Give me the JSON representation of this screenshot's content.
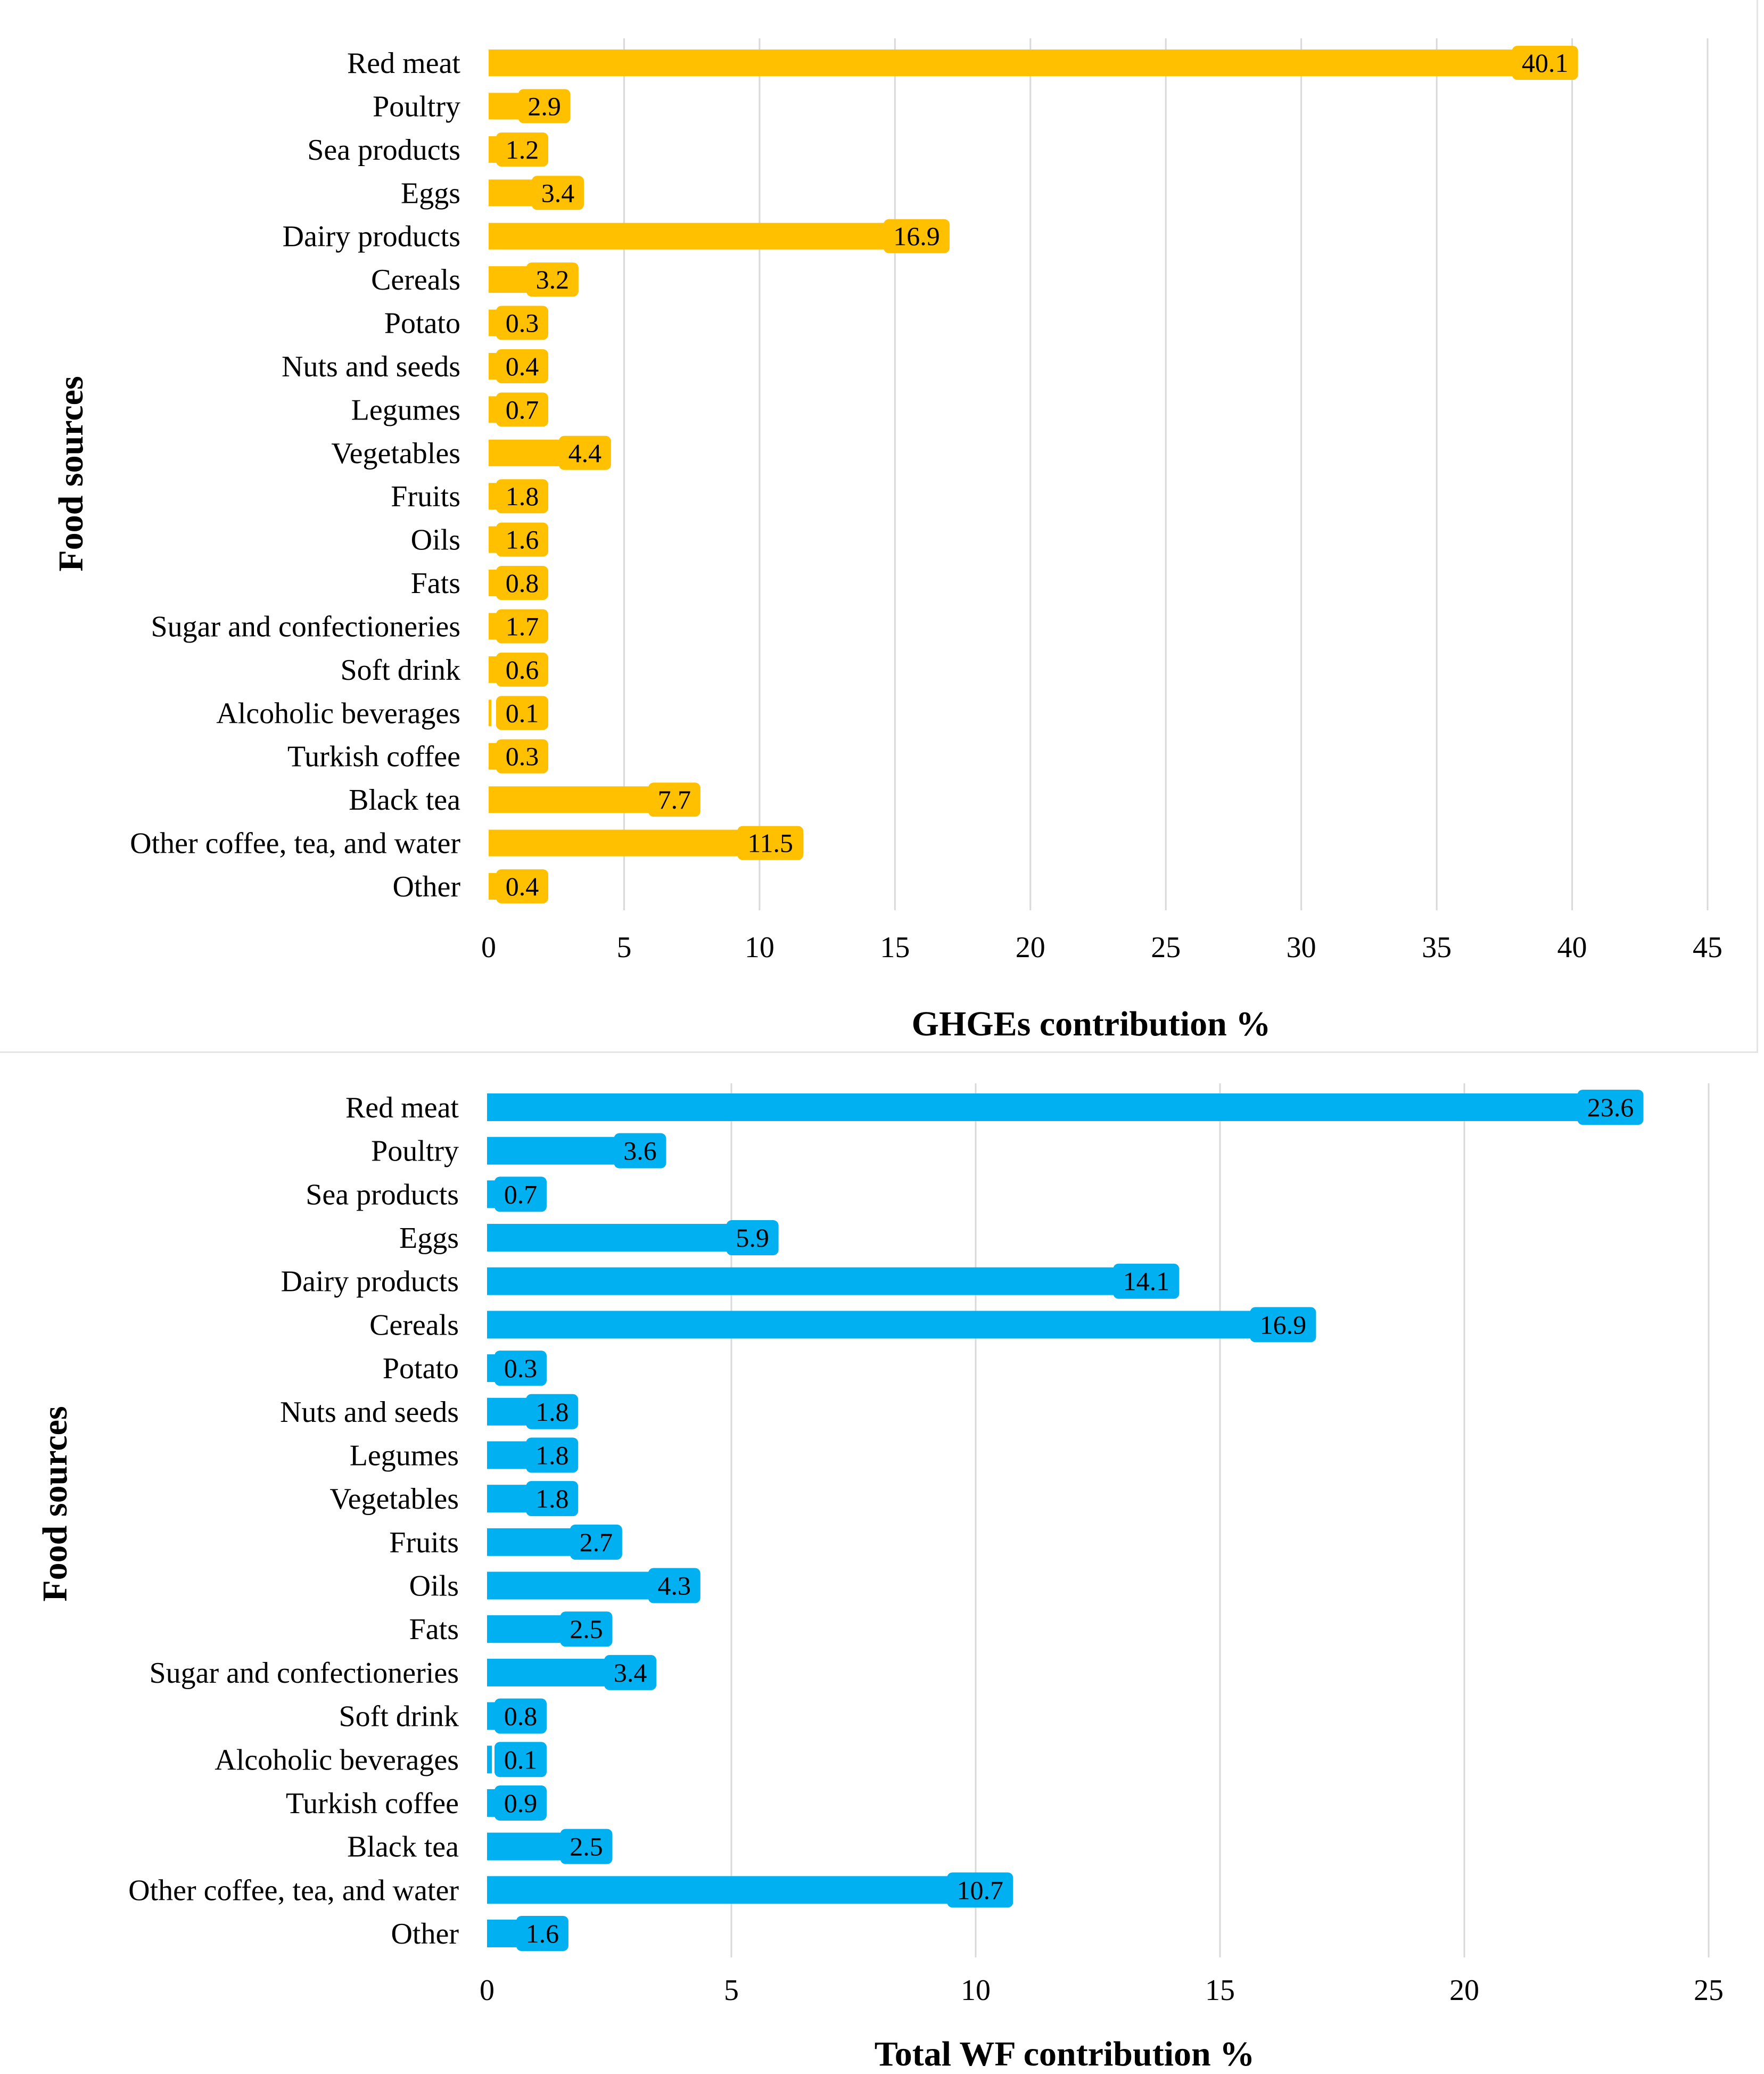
{
  "chart_data": [
    {
      "type": "bar",
      "orientation": "horizontal",
      "title": "",
      "xlabel": "GHGEs contribution %",
      "ylabel": "Food sources",
      "xlim": [
        0,
        45
      ],
      "xticks": [
        0,
        5,
        10,
        15,
        20,
        25,
        30,
        35,
        40,
        45
      ],
      "grid": true,
      "color": "#ffc000",
      "categories": [
        "Red meat",
        "Poultry",
        "Sea products",
        "Eggs",
        "Dairy products",
        "Cereals",
        "Potato",
        "Nuts and seeds",
        "Legumes",
        "Vegetables",
        "Fruits",
        "Oils",
        "Fats",
        "Sugar and confectioneries",
        "Soft drink",
        "Alcoholic beverages",
        "Turkish coffee",
        "Black tea",
        "Other coffee, tea, and water",
        "Other"
      ],
      "values": [
        40.1,
        2.9,
        1.2,
        3.4,
        16.9,
        3.2,
        0.3,
        0.4,
        0.7,
        4.4,
        1.8,
        1.6,
        0.8,
        1.7,
        0.6,
        0.1,
        0.3,
        7.7,
        11.5,
        0.4
      ],
      "value_labels": [
        "40.1",
        "2.9",
        "1.2",
        "3.4",
        "16.9",
        "3.2",
        "0.3",
        "0.4",
        "0.7",
        "4.4",
        "1.8",
        "1.6",
        "0.8",
        "1.7",
        "0.6",
        "0.1",
        "0.3",
        "7.7",
        "11.5",
        "0.4"
      ]
    },
    {
      "type": "bar",
      "orientation": "horizontal",
      "title": "",
      "xlabel": "Total WF contribution %",
      "ylabel": "Food sources",
      "xlim": [
        0,
        25
      ],
      "xticks": [
        0,
        5,
        10,
        15,
        20,
        25
      ],
      "grid": true,
      "color": "#00b0f0",
      "categories": [
        "Red meat",
        "Poultry",
        "Sea products",
        "Eggs",
        "Dairy products",
        "Cereals",
        "Potato",
        "Nuts and seeds",
        "Legumes",
        "Vegetables",
        "Fruits",
        "Oils",
        "Fats",
        "Sugar and confectioneries",
        "Soft drink",
        "Alcoholic beverages",
        "Turkish coffee",
        "Black tea",
        "Other coffee, tea, and water",
        "Other"
      ],
      "values": [
        23.6,
        3.6,
        0.7,
        5.9,
        14.1,
        16.9,
        0.3,
        1.8,
        1.8,
        1.8,
        2.7,
        4.3,
        2.5,
        3.4,
        0.8,
        0.1,
        0.9,
        2.5,
        10.7,
        1.6
      ],
      "value_labels": [
        "23.6",
        "3.6",
        "0.7",
        "5.9",
        "14.1",
        "16.9",
        "0.3",
        "1.8",
        "1.8",
        "1.8",
        "2.7",
        "4.3",
        "2.5",
        "3.4",
        "0.8",
        "0.1",
        "0.9",
        "2.5",
        "10.7",
        "1.6"
      ]
    }
  ]
}
